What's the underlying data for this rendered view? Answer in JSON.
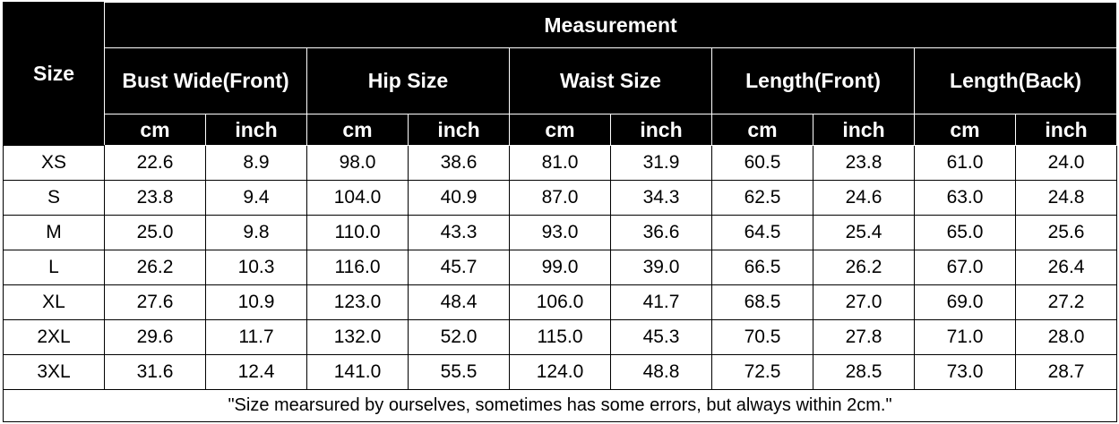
{
  "table": {
    "size_label": "Size",
    "measurement_label": "Measurement",
    "groups": [
      {
        "name": "Bust Wide(Front)",
        "units": [
          "cm",
          "inch"
        ]
      },
      {
        "name": "Hip Size",
        "units": [
          "cm",
          "inch"
        ]
      },
      {
        "name": "Waist Size",
        "units": [
          "cm",
          "inch"
        ]
      },
      {
        "name": "Length(Front)",
        "units": [
          "cm",
          "inch"
        ]
      },
      {
        "name": "Length(Back)",
        "units": [
          "cm",
          "inch"
        ]
      }
    ],
    "rows": [
      {
        "size": "XS",
        "values": [
          "22.6",
          "8.9",
          "98.0",
          "38.6",
          "81.0",
          "31.9",
          "60.5",
          "23.8",
          "61.0",
          "24.0"
        ]
      },
      {
        "size": "S",
        "values": [
          "23.8",
          "9.4",
          "104.0",
          "40.9",
          "87.0",
          "34.3",
          "62.5",
          "24.6",
          "63.0",
          "24.8"
        ]
      },
      {
        "size": "M",
        "values": [
          "25.0",
          "9.8",
          "110.0",
          "43.3",
          "93.0",
          "36.6",
          "64.5",
          "25.4",
          "65.0",
          "25.6"
        ]
      },
      {
        "size": "L",
        "values": [
          "26.2",
          "10.3",
          "116.0",
          "45.7",
          "99.0",
          "39.0",
          "66.5",
          "26.2",
          "67.0",
          "26.4"
        ]
      },
      {
        "size": "XL",
        "values": [
          "27.6",
          "10.9",
          "123.0",
          "48.4",
          "106.0",
          "41.7",
          "68.5",
          "27.0",
          "69.0",
          "27.2"
        ]
      },
      {
        "size": "2XL",
        "values": [
          "29.6",
          "11.7",
          "132.0",
          "52.0",
          "115.0",
          "45.3",
          "70.5",
          "27.8",
          "71.0",
          "28.0"
        ]
      },
      {
        "size": "3XL",
        "values": [
          "31.6",
          "12.4",
          "141.0",
          "55.5",
          "124.0",
          "48.8",
          "72.5",
          "28.5",
          "73.0",
          "28.7"
        ]
      }
    ],
    "note": "\"Size mearsured by ourselves, sometimes has some errors, but always within 2cm.\""
  }
}
